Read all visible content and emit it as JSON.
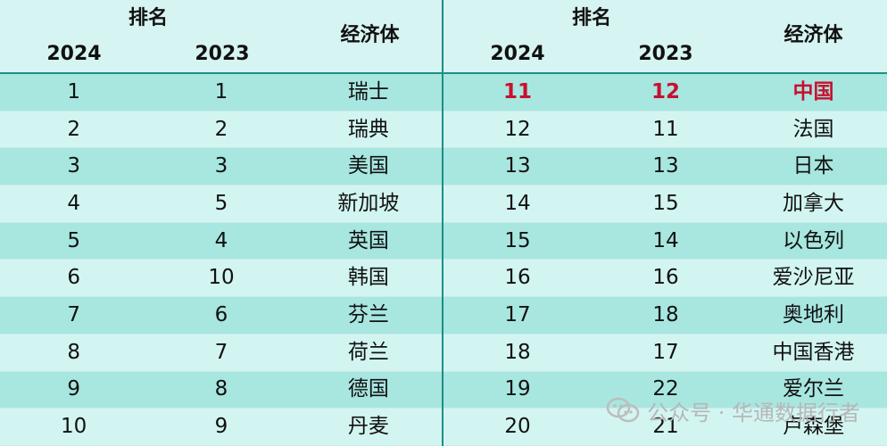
{
  "header": {
    "rank_label": "排名",
    "year_2024": "2024",
    "year_2023": "2023",
    "economy_label": "经济体"
  },
  "left_rows": [
    {
      "r2024": "1",
      "r2023": "1",
      "economy": "瑞士"
    },
    {
      "r2024": "2",
      "r2023": "2",
      "economy": "瑞典"
    },
    {
      "r2024": "3",
      "r2023": "3",
      "economy": "美国"
    },
    {
      "r2024": "4",
      "r2023": "5",
      "economy": "新加坡"
    },
    {
      "r2024": "5",
      "r2023": "4",
      "economy": "英国"
    },
    {
      "r2024": "6",
      "r2023": "10",
      "economy": "韩国"
    },
    {
      "r2024": "7",
      "r2023": "6",
      "economy": "芬兰"
    },
    {
      "r2024": "8",
      "r2023": "7",
      "economy": "荷兰"
    },
    {
      "r2024": "9",
      "r2023": "8",
      "economy": "德国"
    },
    {
      "r2024": "10",
      "r2023": "9",
      "economy": "丹麦"
    }
  ],
  "right_rows": [
    {
      "r2024": "11",
      "r2023": "12",
      "economy": "中国",
      "highlight": true
    },
    {
      "r2024": "12",
      "r2023": "11",
      "economy": "法国"
    },
    {
      "r2024": "13",
      "r2023": "13",
      "economy": "日本"
    },
    {
      "r2024": "14",
      "r2023": "15",
      "economy": "加拿大"
    },
    {
      "r2024": "15",
      "r2023": "14",
      "economy": "以色列"
    },
    {
      "r2024": "16",
      "r2023": "16",
      "economy": "爱沙尼亚"
    },
    {
      "r2024": "17",
      "r2023": "18",
      "economy": "奥地利"
    },
    {
      "r2024": "18",
      "r2023": "17",
      "economy": "中国香港"
    },
    {
      "r2024": "19",
      "r2023": "22",
      "economy": "爱尔兰"
    },
    {
      "r2024": "20",
      "r2023": "21",
      "economy": "卢森堡"
    }
  ],
  "watermark": {
    "text": "公众号 · 华通数据行者",
    "icon": "wechat-icon"
  },
  "colors": {
    "highlight": "#c8102e",
    "border": "#1b8f86"
  }
}
